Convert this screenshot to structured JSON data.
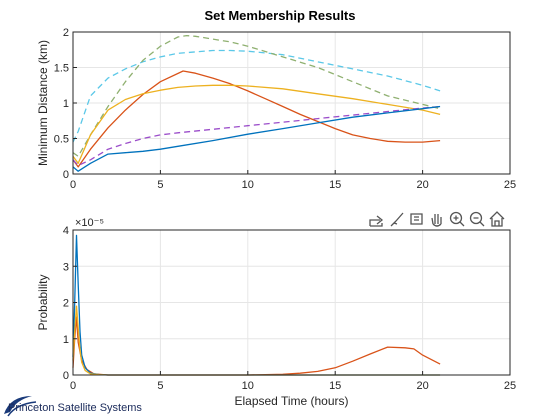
{
  "figure_title": "Set Membership Results",
  "toolbar": {
    "icons": [
      "export-icon",
      "brush-icon",
      "datatip-icon",
      "pan-icon",
      "zoom-in-icon",
      "zoom-out-icon",
      "home-icon"
    ]
  },
  "logo": {
    "text": "Princeton Satellite Systems"
  },
  "colors": {
    "blue": "#0072BD",
    "orange": "#D95319",
    "yellow": "#EDB120",
    "purple": "#9B4DCA",
    "cyan": "#5BC8E8",
    "olive": "#8FB070"
  },
  "chart_data": [
    {
      "type": "line",
      "title": "Set Membership Results",
      "xlabel": "",
      "ylabel": "Minimum Distance (km)",
      "xlim": [
        0,
        25
      ],
      "ylim": [
        0,
        2
      ],
      "xticks": [
        0,
        5,
        10,
        15,
        20,
        25
      ],
      "yticks": [
        0,
        0.5,
        1,
        1.5,
        2
      ],
      "xtick_labels": [
        "0",
        "5",
        "10",
        "15",
        "20",
        "25"
      ],
      "ytick_labels": [
        "0",
        "0.5",
        "1",
        "1.5",
        "2"
      ],
      "grid": true,
      "series": [
        {
          "color": "#5BC8E8",
          "dash": "dashed",
          "x": [
            0,
            0.3,
            1,
            2,
            3,
            4,
            5,
            6,
            7,
            8,
            9,
            10,
            12,
            14,
            16,
            18,
            20,
            21
          ],
          "y": [
            0.45,
            0.6,
            1.1,
            1.35,
            1.48,
            1.58,
            1.65,
            1.7,
            1.72,
            1.74,
            1.74,
            1.73,
            1.68,
            1.58,
            1.48,
            1.38,
            1.25,
            1.17
          ]
        },
        {
          "color": "#8FB070",
          "dash": "dashed",
          "x": [
            0,
            0.3,
            1,
            2,
            3,
            4,
            5,
            6,
            6.5,
            7,
            8,
            9,
            10,
            12,
            14,
            16,
            18,
            20,
            21
          ],
          "y": [
            0.3,
            0.25,
            0.55,
            0.95,
            1.3,
            1.6,
            1.8,
            1.93,
            1.95,
            1.94,
            1.9,
            1.86,
            1.8,
            1.65,
            1.5,
            1.3,
            1.1,
            0.98,
            0.92
          ]
        },
        {
          "color": "#D95319",
          "dash": "solid",
          "x": [
            0,
            0.3,
            1,
            2,
            3,
            4,
            5,
            6.3,
            7,
            8,
            9,
            10,
            11,
            12,
            13,
            14,
            15,
            16,
            17,
            18,
            19,
            20,
            21
          ],
          "y": [
            0.2,
            0.1,
            0.35,
            0.65,
            0.9,
            1.12,
            1.3,
            1.45,
            1.42,
            1.35,
            1.27,
            1.17,
            1.06,
            0.95,
            0.84,
            0.74,
            0.64,
            0.55,
            0.5,
            0.46,
            0.45,
            0.45,
            0.47
          ]
        },
        {
          "color": "#EDB120",
          "dash": "solid",
          "x": [
            0,
            0.3,
            1,
            2,
            3,
            4,
            5,
            6,
            7,
            8,
            9,
            10,
            12,
            14,
            16,
            18,
            20,
            21
          ],
          "y": [
            0.25,
            0.15,
            0.55,
            0.9,
            1.05,
            1.13,
            1.18,
            1.22,
            1.24,
            1.25,
            1.25,
            1.24,
            1.2,
            1.13,
            1.06,
            0.98,
            0.9,
            0.84
          ]
        },
        {
          "color": "#9B4DCA",
          "dash": "dashed",
          "x": [
            0,
            0.3,
            1,
            2,
            3,
            4,
            5,
            6,
            8,
            10,
            12,
            14,
            16,
            18,
            20,
            21
          ],
          "y": [
            0.2,
            0.12,
            0.2,
            0.35,
            0.43,
            0.5,
            0.55,
            0.58,
            0.63,
            0.68,
            0.73,
            0.78,
            0.83,
            0.88,
            0.93,
            0.95
          ]
        },
        {
          "color": "#0072BD",
          "dash": "solid",
          "x": [
            0,
            0.3,
            1,
            2,
            3,
            4,
            5,
            6,
            8,
            10,
            12,
            14,
            16,
            18,
            20,
            21
          ],
          "y": [
            0.1,
            0.04,
            0.15,
            0.28,
            0.3,
            0.32,
            0.35,
            0.39,
            0.47,
            0.56,
            0.64,
            0.72,
            0.8,
            0.86,
            0.92,
            0.95
          ]
        }
      ]
    },
    {
      "type": "line",
      "title": "",
      "xlabel": "Elapsed Time (hours)",
      "ylabel": "Probability",
      "exponent_label": "×10⁻⁵",
      "xlim": [
        0,
        25
      ],
      "ylim": [
        0,
        4
      ],
      "xticks": [
        0,
        5,
        10,
        15,
        20,
        25
      ],
      "yticks": [
        0,
        1,
        2,
        3,
        4
      ],
      "xtick_labels": [
        "0",
        "5",
        "10",
        "15",
        "20",
        "25"
      ],
      "ytick_labels": [
        "0",
        "1",
        "2",
        "3",
        "4"
      ],
      "grid": true,
      "series": [
        {
          "color": "#D95319",
          "dash": "solid",
          "x": [
            0,
            0.1,
            0.2,
            0.3,
            0.5,
            0.8,
            1.2,
            2,
            5,
            10,
            11,
            12,
            13,
            14,
            15,
            16,
            17,
            18,
            19,
            19.5,
            20,
            21
          ],
          "y": [
            0.2,
            1.0,
            1.6,
            0.9,
            0.4,
            0.15,
            0.03,
            0,
            0,
            0,
            0.01,
            0.02,
            0.05,
            0.1,
            0.2,
            0.38,
            0.58,
            0.77,
            0.75,
            0.72,
            0.55,
            0.3
          ]
        },
        {
          "color": "#0072BD",
          "dash": "solid",
          "x": [
            0,
            0.1,
            0.2,
            0.3,
            0.4,
            0.5,
            0.7,
            1,
            1.5,
            2,
            5,
            21
          ],
          "y": [
            0.5,
            2.0,
            3.85,
            2.5,
            1.2,
            0.55,
            0.2,
            0.05,
            0.01,
            0,
            0,
            0
          ]
        },
        {
          "color": "#EDB120",
          "dash": "solid",
          "x": [
            0,
            0.1,
            0.2,
            0.3,
            0.4,
            0.5,
            0.7,
            1,
            1.5,
            2,
            5,
            21
          ],
          "y": [
            0.4,
            1.2,
            1.9,
            1.3,
            0.7,
            0.35,
            0.12,
            0.03,
            0.01,
            0,
            0,
            0
          ]
        }
      ]
    }
  ]
}
